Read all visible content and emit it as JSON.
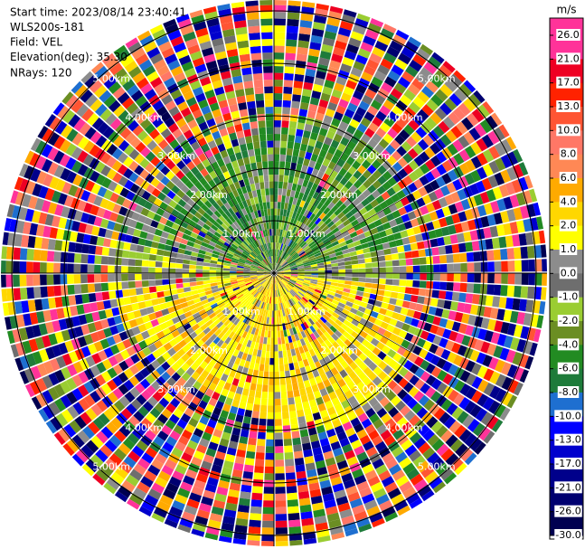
{
  "header": {
    "lines": [
      "Start time: 2023/08/14 23:40:41",
      "WLS200s-181",
      "Field: VEL",
      "Elevation(deg): 35.30",
      "NRays: 120"
    ]
  },
  "chart_data": {
    "type": "ppi",
    "range_labels": [
      "1.00km",
      "2.00km",
      "3.00km",
      "4.00km",
      "5.00km"
    ],
    "colorbar": {
      "title": "m/s",
      "ticks": [
        {
          "value": 26,
          "label": "26.0"
        },
        {
          "value": 21,
          "label": "21.0"
        },
        {
          "value": 17,
          "label": "17.0"
        },
        {
          "value": 13,
          "label": "13.0"
        },
        {
          "value": 10,
          "label": "10.0"
        },
        {
          "value": 8,
          "label": "8.0"
        },
        {
          "value": 6,
          "label": "6.0"
        },
        {
          "value": 4,
          "label": "4.0"
        },
        {
          "value": 2,
          "label": "2.0"
        },
        {
          "value": 1,
          "label": "1.0"
        },
        {
          "value": 0,
          "label": "0.0"
        },
        {
          "value": -1,
          "label": "-1.0"
        },
        {
          "value": -2,
          "label": "-2.0"
        },
        {
          "value": -4,
          "label": "-4.0"
        },
        {
          "value": -6,
          "label": "-6.0"
        },
        {
          "value": -8,
          "label": "-8.0"
        },
        {
          "value": -10,
          "label": "-10.0"
        },
        {
          "value": -13,
          "label": "-13.0"
        },
        {
          "value": -17,
          "label": "-17.0"
        },
        {
          "value": -21,
          "label": "-21.0"
        },
        {
          "value": -26,
          "label": "-26.0"
        },
        {
          "value": -30,
          "label": "-30.0"
        }
      ],
      "colors": [
        "#ff3399",
        "#ee0022",
        "#ff2200",
        "#ff5533",
        "#ff7766",
        "#ff8855",
        "#ffaa00",
        "#ffd700",
        "#ffff00",
        "#8c8c8c",
        "#6e6e6e",
        "#9acd32",
        "#6b8e23",
        "#228b22",
        "#1e7b3a",
        "#1e6fd0",
        "#0000ff",
        "#0000cd",
        "#00008b",
        "#000070",
        "#000050"
      ]
    }
  }
}
